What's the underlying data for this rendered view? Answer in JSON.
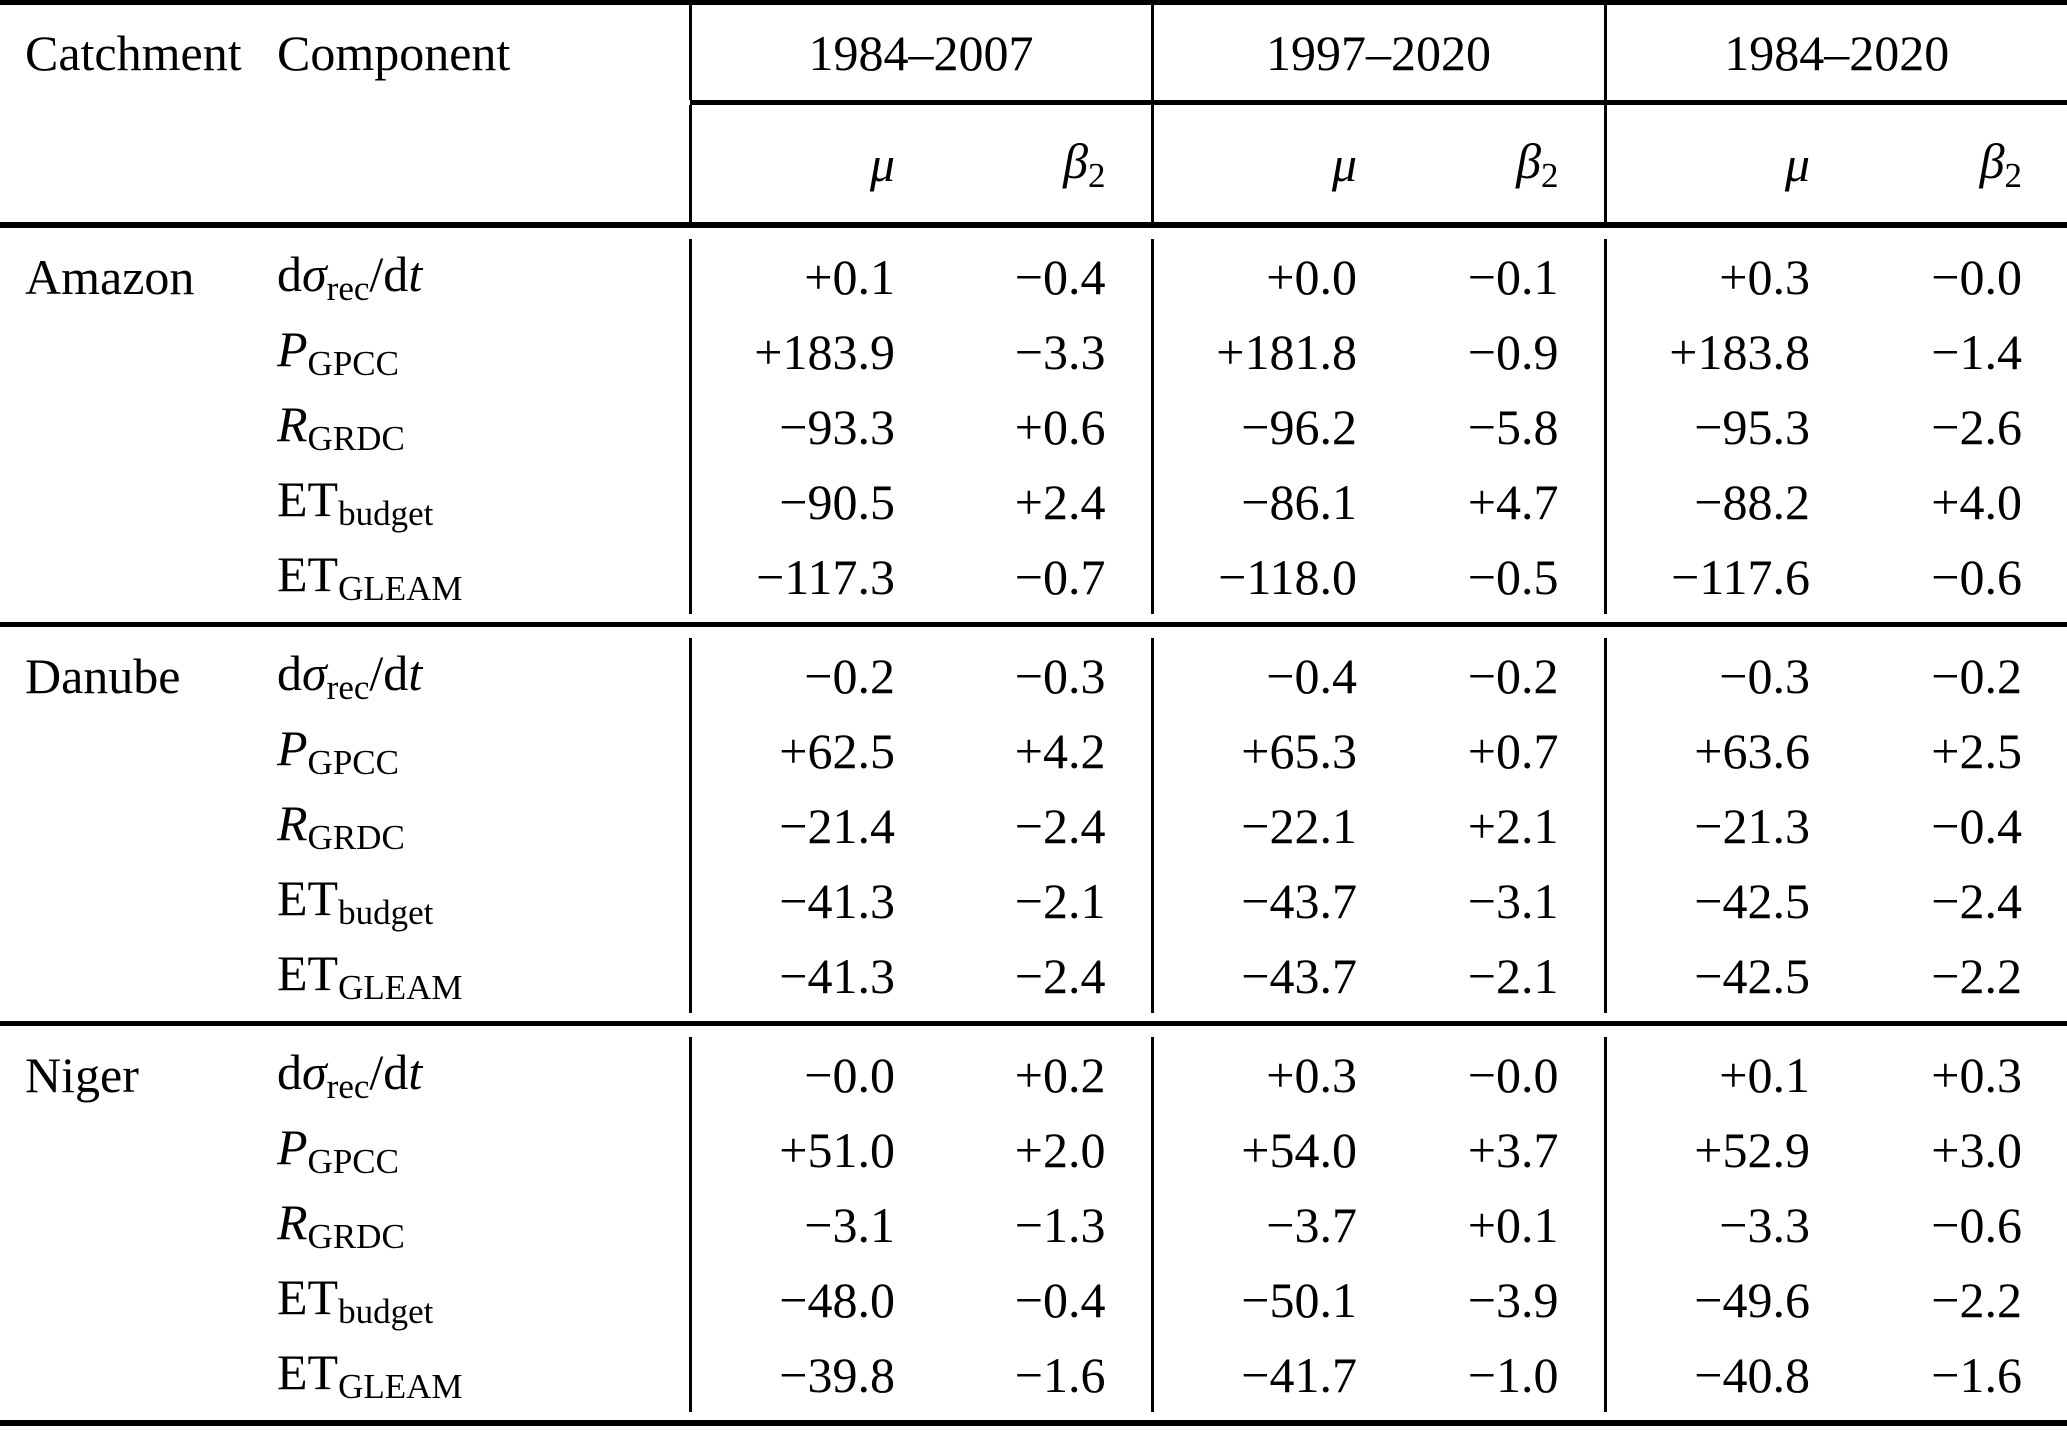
{
  "header": {
    "catchment": "Catchment",
    "component": "Component",
    "periods": [
      "1984–2007",
      "1997–2020",
      "1984–2020"
    ],
    "stat_mu": [
      {
        "t": "μ",
        "s": "it"
      }
    ],
    "stat_beta2": [
      {
        "t": "β",
        "s": "it"
      },
      {
        "t": "2",
        "s": "sub"
      }
    ]
  },
  "sections": [
    {
      "catchment": "Amazon",
      "rows": [
        {
          "component": [
            {
              "t": "d",
              "s": "rm"
            },
            {
              "t": "σ",
              "s": "it"
            },
            {
              "t": "rec",
              "s": "sub"
            },
            {
              "t": "/d",
              "s": "rm"
            },
            {
              "t": "t",
              "s": "it"
            }
          ],
          "values": [
            "+0.1",
            "−0.4",
            "+0.0",
            "−0.1",
            "+0.3",
            "−0.0"
          ]
        },
        {
          "component": [
            {
              "t": "P",
              "s": "it"
            },
            {
              "t": "GPCC",
              "s": "sub"
            }
          ],
          "values": [
            "+183.9",
            "−3.3",
            "+181.8",
            "−0.9",
            "+183.8",
            "−1.4"
          ]
        },
        {
          "component": [
            {
              "t": "R",
              "s": "it"
            },
            {
              "t": "GRDC",
              "s": "sub"
            }
          ],
          "values": [
            "−93.3",
            "+0.6",
            "−96.2",
            "−5.8",
            "−95.3",
            "−2.6"
          ]
        },
        {
          "component": [
            {
              "t": "ET",
              "s": "rm"
            },
            {
              "t": "budget",
              "s": "sub"
            }
          ],
          "values": [
            "−90.5",
            "+2.4",
            "−86.1",
            "+4.7",
            "−88.2",
            "+4.0"
          ]
        },
        {
          "component": [
            {
              "t": "ET",
              "s": "rm"
            },
            {
              "t": "GLEAM",
              "s": "sub"
            }
          ],
          "values": [
            "−117.3",
            "−0.7",
            "−118.0",
            "−0.5",
            "−117.6",
            "−0.6"
          ]
        }
      ]
    },
    {
      "catchment": "Danube",
      "rows": [
        {
          "component": [
            {
              "t": "d",
              "s": "rm"
            },
            {
              "t": "σ",
              "s": "it"
            },
            {
              "t": "rec",
              "s": "sub"
            },
            {
              "t": "/d",
              "s": "rm"
            },
            {
              "t": "t",
              "s": "it"
            }
          ],
          "values": [
            "−0.2",
            "−0.3",
            "−0.4",
            "−0.2",
            "−0.3",
            "−0.2"
          ]
        },
        {
          "component": [
            {
              "t": "P",
              "s": "it"
            },
            {
              "t": "GPCC",
              "s": "sub"
            }
          ],
          "values": [
            "+62.5",
            "+4.2",
            "+65.3",
            "+0.7",
            "+63.6",
            "+2.5"
          ]
        },
        {
          "component": [
            {
              "t": "R",
              "s": "it"
            },
            {
              "t": "GRDC",
              "s": "sub"
            }
          ],
          "values": [
            "−21.4",
            "−2.4",
            "−22.1",
            "+2.1",
            "−21.3",
            "−0.4"
          ]
        },
        {
          "component": [
            {
              "t": "ET",
              "s": "rm"
            },
            {
              "t": "budget",
              "s": "sub"
            }
          ],
          "values": [
            "−41.3",
            "−2.1",
            "−43.7",
            "−3.1",
            "−42.5",
            "−2.4"
          ]
        },
        {
          "component": [
            {
              "t": "ET",
              "s": "rm"
            },
            {
              "t": "GLEAM",
              "s": "sub"
            }
          ],
          "values": [
            "−41.3",
            "−2.4",
            "−43.7",
            "−2.1",
            "−42.5",
            "−2.2"
          ]
        }
      ]
    },
    {
      "catchment": "Niger",
      "rows": [
        {
          "component": [
            {
              "t": "d",
              "s": "rm"
            },
            {
              "t": "σ",
              "s": "it"
            },
            {
              "t": "rec",
              "s": "sub"
            },
            {
              "t": "/d",
              "s": "rm"
            },
            {
              "t": "t",
              "s": "it"
            }
          ],
          "values": [
            "−0.0",
            "+0.2",
            "+0.3",
            "−0.0",
            "+0.1",
            "+0.3"
          ]
        },
        {
          "component": [
            {
              "t": "P",
              "s": "it"
            },
            {
              "t": "GPCC",
              "s": "sub"
            }
          ],
          "values": [
            "+51.0",
            "+2.0",
            "+54.0",
            "+3.7",
            "+52.9",
            "+3.0"
          ]
        },
        {
          "component": [
            {
              "t": "R",
              "s": "it"
            },
            {
              "t": "GRDC",
              "s": "sub"
            }
          ],
          "values": [
            "−3.1",
            "−1.3",
            "−3.7",
            "+0.1",
            "−3.3",
            "−0.6"
          ]
        },
        {
          "component": [
            {
              "t": "ET",
              "s": "rm"
            },
            {
              "t": "budget",
              "s": "sub"
            }
          ],
          "values": [
            "−48.0",
            "−0.4",
            "−50.1",
            "−3.9",
            "−49.6",
            "−2.2"
          ]
        },
        {
          "component": [
            {
              "t": "ET",
              "s": "rm"
            },
            {
              "t": "GLEAM",
              "s": "sub"
            }
          ],
          "values": [
            "−39.8",
            "−1.6",
            "−41.7",
            "−1.0",
            "−40.8",
            "−1.6"
          ]
        }
      ]
    }
  ]
}
